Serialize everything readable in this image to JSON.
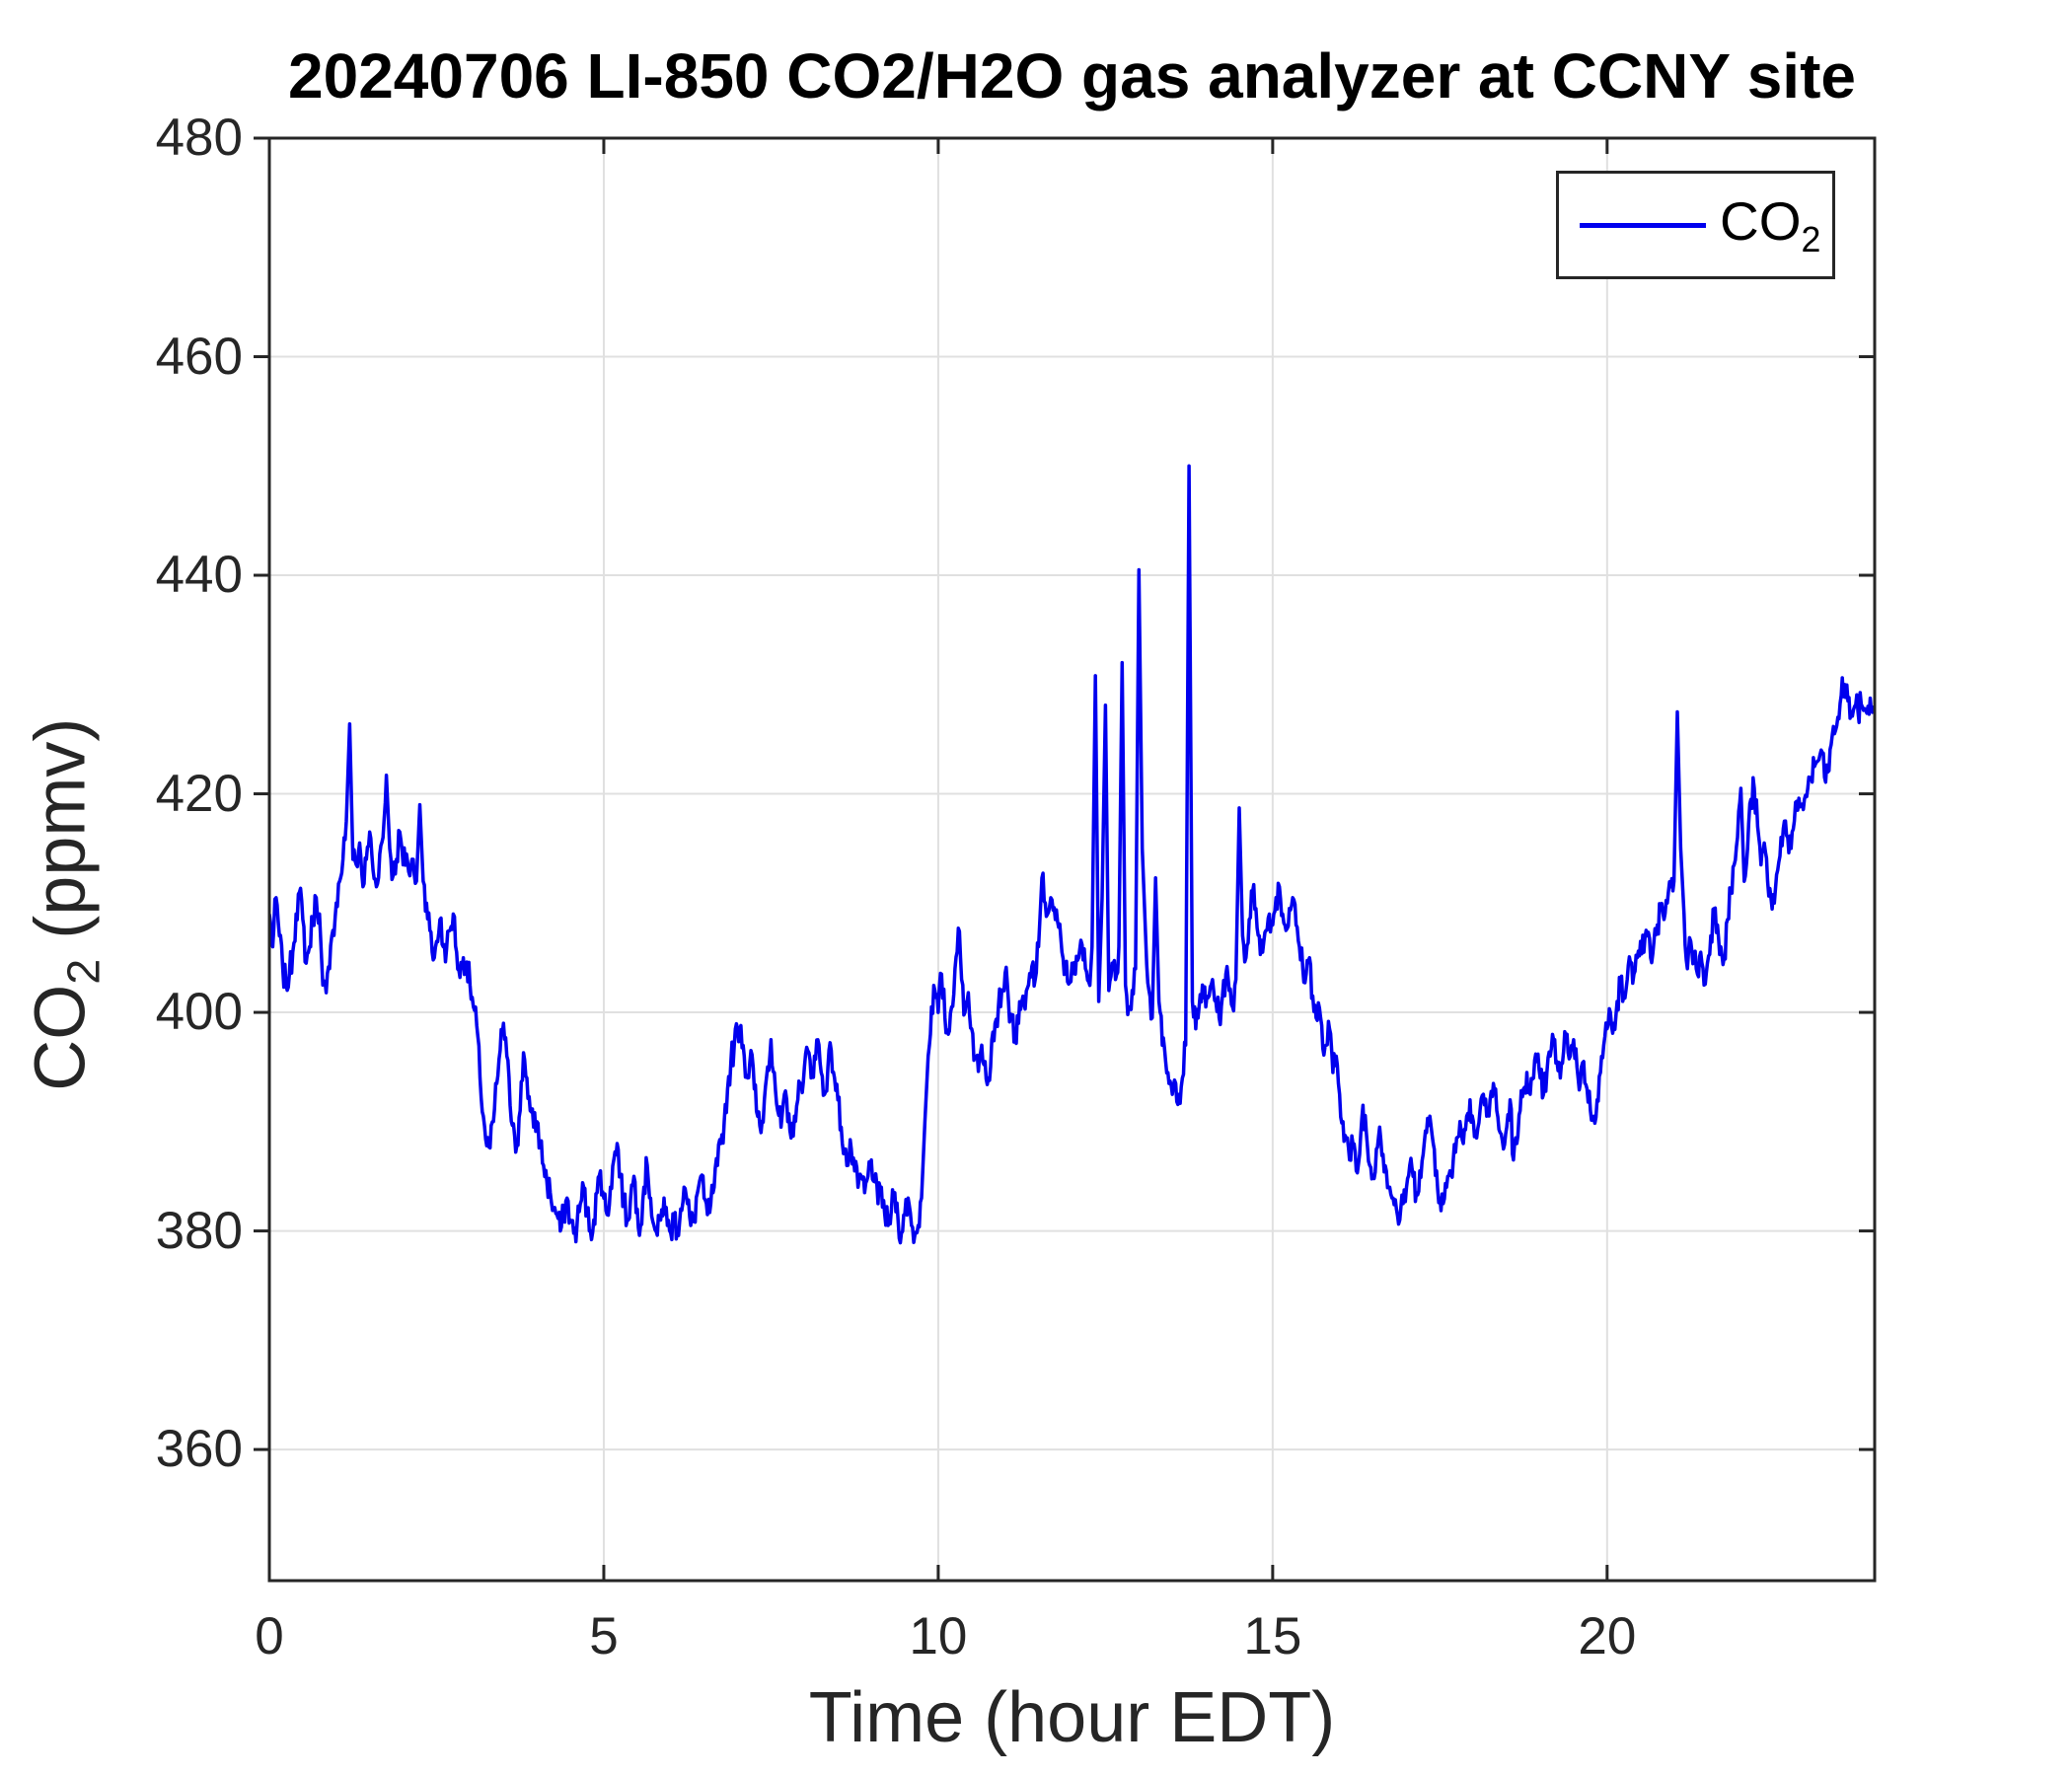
{
  "figure": {
    "title": "20240706 LI-850 CO2/H2O gas analyzer at CCNY site"
  },
  "axes": {
    "x": {
      "label": "Time (hour EDT)",
      "ticks": [
        0,
        5,
        10,
        15,
        20
      ],
      "lim": [
        0,
        24
      ]
    },
    "y": {
      "label": {
        "pre": "CO",
        "sub": "2",
        "post": " (ppmv)"
      },
      "ticks": [
        360,
        380,
        400,
        420,
        440,
        460,
        480
      ],
      "lim": [
        348,
        480
      ]
    }
  },
  "legend": {
    "entry": {
      "pre": "CO",
      "sub": "2"
    },
    "position": "northeast"
  },
  "colors": {
    "line": "#0000EE",
    "grid": "#E0E0E0",
    "axis": "#262626",
    "tick_label": "#262626",
    "title": "#000000",
    "background": "#FFFFFF",
    "legend_border": "#262626"
  },
  "chart_data": {
    "type": "line",
    "title": "20240706 LI-850 CO2/H2O gas analyzer at CCNY site",
    "xlabel": "Time (hour EDT)",
    "ylabel": "CO2 (ppmv)",
    "xlim": [
      0,
      24
    ],
    "ylim": [
      348,
      480
    ],
    "xticks": [
      0,
      5,
      10,
      15,
      20
    ],
    "yticks": [
      360,
      380,
      400,
      420,
      440,
      460,
      480
    ],
    "grid": true,
    "legend_position": "northeast",
    "noise_amplitude": 1.4,
    "series": [
      {
        "name": "CO2",
        "x_start": 0,
        "x_step": 0.05,
        "y": [
          409,
          406,
          410.5,
          407,
          404,
          402.5,
          403.5,
          405.5,
          409,
          411,
          408.5,
          404.5,
          406,
          408.5,
          410.5,
          409,
          402.5,
          401.8,
          404,
          407.5,
          410,
          412,
          414,
          417.5,
          426.4,
          414,
          413.5,
          415.5,
          411.5,
          414,
          416.5,
          413,
          411.5,
          414.5,
          416,
          421.7,
          415,
          412.5,
          414,
          416.5,
          413.5,
          414.5,
          412.5,
          414,
          412,
          419,
          412,
          410,
          407.5,
          404.8,
          406.5,
          408.5,
          406,
          405.8,
          407.5,
          409,
          405.5,
          403.2,
          405,
          404.6,
          402.5,
          400.5,
          398.8,
          394,
          390.5,
          387.8,
          387.6,
          390,
          393.5,
          396.5,
          399,
          396,
          391.5,
          389.8,
          387.8,
          391,
          396.3,
          394,
          391,
          389.5,
          390,
          388,
          386,
          384.5,
          383.5,
          382,
          381.5,
          380,
          381.5,
          383,
          381,
          379.8,
          380.5,
          382.5,
          384,
          381.5,
          380,
          381,
          383.5,
          385.5,
          383,
          381.5,
          384,
          386.5,
          388,
          385,
          382.5,
          381,
          383,
          385,
          382,
          380.5,
          384,
          386,
          383,
          380.5,
          379.6,
          381,
          383,
          380.5,
          379.8,
          381.5,
          380,
          382,
          384,
          382.5,
          380.5,
          381,
          383.5,
          385,
          383,
          381.5,
          382.5,
          384,
          386,
          388,
          390,
          393,
          395.5,
          397,
          398.5,
          398.8,
          396,
          394,
          396.5,
          393,
          390.5,
          389,
          392,
          395,
          397.5,
          394.5,
          391,
          389.5,
          392.5,
          390,
          388.5,
          390.5,
          392,
          393.5,
          395,
          396.5,
          394,
          396,
          397.5,
          394.5,
          392.5,
          395,
          396.5,
          394,
          392,
          389.5,
          387.5,
          386,
          387.5,
          385.5,
          384,
          385,
          383.5,
          385,
          386.5,
          384.5,
          382.5,
          384,
          381.5,
          380.5,
          382,
          383.5,
          381,
          379.8,
          381.5,
          383,
          380.5,
          379.6,
          380.5,
          383,
          390,
          396,
          400.5,
          402,
          400,
          403.5,
          399.5,
          398,
          400.5,
          404,
          407.7,
          403,
          400,
          401.8,
          398.5,
          396,
          394.6,
          397,
          395.5,
          394,
          397.5,
          399,
          400.5,
          402,
          403.6,
          401,
          399.5,
          397.5,
          399,
          401,
          400.3,
          402.5,
          404.2,
          403,
          406,
          412.3,
          410,
          409.2,
          410.3,
          408.5,
          407.8,
          405.5,
          404,
          402.6,
          404.5,
          403.5,
          405,
          406.2,
          404,
          402.8,
          406,
          430.8,
          401,
          410.5,
          428.1,
          402,
          404.5,
          403,
          406,
          432,
          402.5,
          400.5,
          402,
          404,
          440.5,
          415,
          407,
          402,
          399.5,
          412.3,
          401,
          397,
          395.5,
          393.5,
          392.5,
          393.5,
          392.5,
          394,
          397,
          450,
          401,
          398.5,
          400.5,
          402.5,
          400.5,
          401.5,
          403,
          401,
          399.5,
          401.5,
          403.5,
          402,
          400.5,
          403,
          418.7,
          407,
          405,
          408.5,
          411,
          409.5,
          407,
          405.5,
          407.5,
          409,
          408,
          410.5,
          411.5,
          409,
          407.5,
          409.5,
          410.5,
          408,
          406,
          404,
          403.5,
          405,
          401.5,
          399.5,
          400.4,
          396.7,
          397,
          398.5,
          394.5,
          396,
          392.5,
          390,
          388.5,
          386.5,
          388,
          385.5,
          387,
          391.5,
          389,
          386,
          385,
          387.5,
          389.5,
          387,
          385.5,
          384,
          383,
          382,
          381,
          382.5,
          384,
          386,
          385,
          383.5,
          385.5,
          387,
          389,
          390.5,
          388,
          385.5,
          383,
          382.5,
          384,
          385.5,
          386.5,
          388.5,
          390,
          388,
          390.5,
          392,
          390,
          388.5,
          391,
          392.5,
          390.5,
          392,
          393.5,
          391,
          389,
          387.5,
          389.5,
          392,
          386.5,
          388,
          391,
          393,
          394.5,
          392.5,
          394,
          395.5,
          394,
          392.5,
          394.5,
          396,
          397.5,
          395.5,
          394,
          396.5,
          398,
          396,
          397.5,
          395,
          393.5,
          395.5,
          393,
          391,
          390.5,
          392,
          394.5,
          397,
          398.5,
          400,
          399,
          401,
          402.5,
          401.5,
          403,
          404.5,
          403.5,
          405,
          406.5,
          405.5,
          407,
          405,
          406.5,
          408,
          409.5,
          408.5,
          410,
          411.5,
          412,
          427.5,
          415,
          409,
          404,
          406.5,
          405,
          403.5,
          405.5,
          402.5,
          404.5,
          407,
          409.5,
          408,
          406,
          405,
          408.5,
          411,
          413.5,
          416,
          420.5,
          412,
          415,
          419.5,
          420.5,
          417,
          413.5,
          415.5,
          412,
          410.5,
          410,
          413,
          416,
          417.5,
          416,
          415,
          417.5,
          418.5,
          419,
          419.5,
          420.5,
          421.5,
          422.5,
          423,
          424,
          421.5,
          422,
          424.5,
          425.5,
          427,
          429,
          430,
          428.5,
          427.5,
          428,
          427.5,
          428.2,
          427.8,
          428,
          427.6,
          427.8
        ]
      }
    ]
  }
}
